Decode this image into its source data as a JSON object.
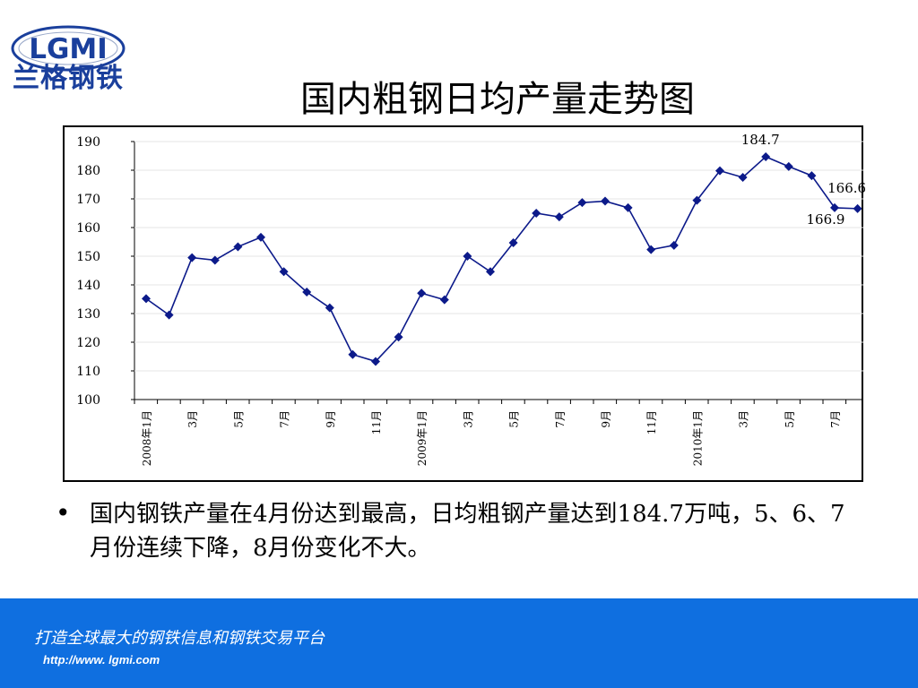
{
  "logo": {
    "brand": "LGMI",
    "name": "兰格钢铁"
  },
  "title": "国内粗钢日均产量走势图",
  "bullet_text": "国内钢铁产量在4月份达到最高，日均粗钢产量达到184.7万吨，5、6、7月份连续下降，8月份变化不大。",
  "footer": {
    "slogan": "打造全球最大的钢铁信息和钢铁交易平台",
    "url": "http://www. lgmi.com"
  },
  "colors": {
    "line": "#0c1a8a",
    "marker": "#0c1a8a",
    "footer_bg": "#0f6fe0",
    "logo": "#1a3f9c"
  },
  "chart_data": {
    "type": "line",
    "title": "",
    "xlabel": "",
    "ylabel": "",
    "ylim": [
      100,
      190
    ],
    "yticks": [
      "190",
      "180",
      "170",
      "160",
      "150",
      "140",
      "130",
      "120",
      "110",
      "100"
    ],
    "x": [
      "2008年1月",
      "2008年2月",
      "2008年3月",
      "2008年4月",
      "2008年5月",
      "2008年6月",
      "2008年7月",
      "2008年8月",
      "2008年9月",
      "2008年10月",
      "2008年11月",
      "2008年12月",
      "2009年1月",
      "2009年2月",
      "2009年3月",
      "2009年4月",
      "2009年5月",
      "2009年6月",
      "2009年7月",
      "2009年8月",
      "2009年9月",
      "2009年10月",
      "2009年11月",
      "2009年12月",
      "2010年1月",
      "2010年2月",
      "2010年3月",
      "2010年4月",
      "2010年5月",
      "2010年6月",
      "2010年7月",
      "2010年8月"
    ],
    "tick_labels": [
      {
        "i": 0,
        "text": "2008年1月"
      },
      {
        "i": 2,
        "text": "3月"
      },
      {
        "i": 4,
        "text": "5月"
      },
      {
        "i": 6,
        "text": "7月"
      },
      {
        "i": 8,
        "text": "9月"
      },
      {
        "i": 10,
        "text": "11月"
      },
      {
        "i": 12,
        "text": "2009年1月"
      },
      {
        "i": 14,
        "text": "3月"
      },
      {
        "i": 16,
        "text": "5月"
      },
      {
        "i": 18,
        "text": "7月"
      },
      {
        "i": 20,
        "text": "9月"
      },
      {
        "i": 22,
        "text": "11月"
      },
      {
        "i": 24,
        "text": "2010年1月"
      },
      {
        "i": 26,
        "text": "3月"
      },
      {
        "i": 28,
        "text": "5月"
      },
      {
        "i": 30,
        "text": "7月"
      }
    ],
    "series": [
      {
        "values": [
          135.2,
          129.5,
          149.5,
          148.6,
          153.3,
          156.6,
          144.6,
          137.5,
          132.0,
          115.7,
          113.3,
          121.8,
          137.1,
          134.8,
          150.0,
          144.6,
          154.7,
          165.0,
          163.7,
          168.7,
          169.2,
          166.9,
          152.3,
          153.8,
          169.5,
          179.8,
          177.5,
          184.7,
          181.3,
          178.1,
          166.9,
          166.6
        ]
      }
    ],
    "annotations": [
      {
        "text": "184.7",
        "index": 27
      },
      {
        "text": "166.6",
        "index": 31
      },
      {
        "text": "166.9",
        "index": 30
      }
    ],
    "grid": true
  }
}
